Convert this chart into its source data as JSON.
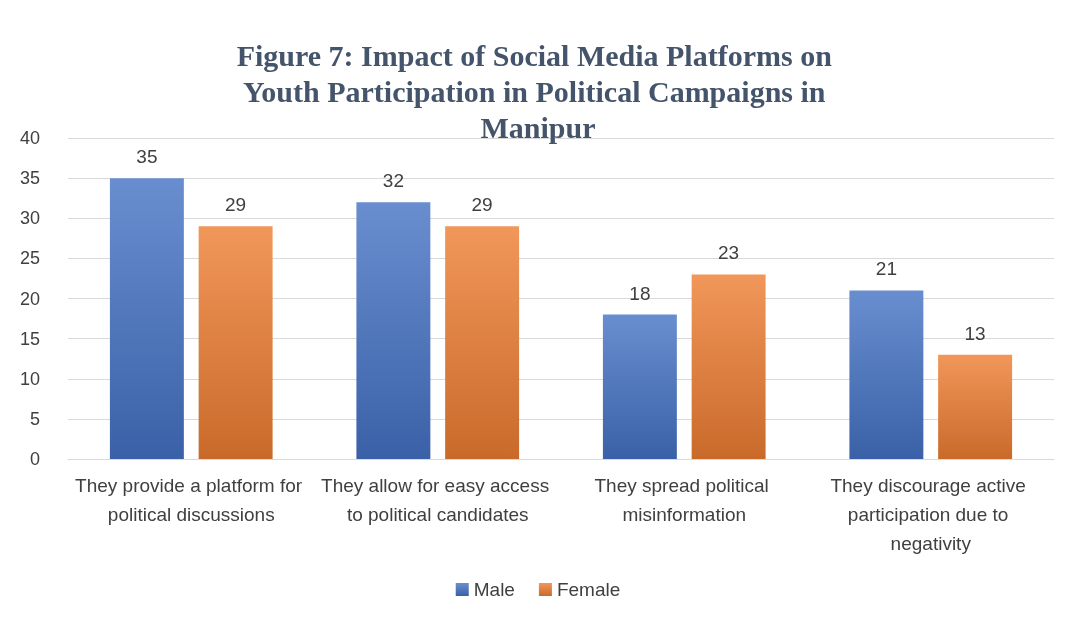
{
  "chart_data": {
    "type": "bar",
    "title": "Figure 7: Impact of Social Media Platforms on Youth Participation in Political Campaigns in Manipur",
    "categories": [
      "They provide a platform for political discussions",
      "They allow for easy access to political candidates",
      "They spread political misinformation",
      "They discourage active participation due to negativity"
    ],
    "series": [
      {
        "name": "Male",
        "color": "#4472c4",
        "values": [
          35,
          32,
          18,
          21
        ]
      },
      {
        "name": "Female",
        "color": "#ed7d31",
        "values": [
          29,
          29,
          23,
          13
        ]
      }
    ],
    "ylim": [
      0,
      40
    ],
    "yticks": [
      0,
      5,
      10,
      15,
      20,
      25,
      30,
      35,
      40
    ],
    "grid": "y",
    "legend": "bottom",
    "data_labels": true
  }
}
